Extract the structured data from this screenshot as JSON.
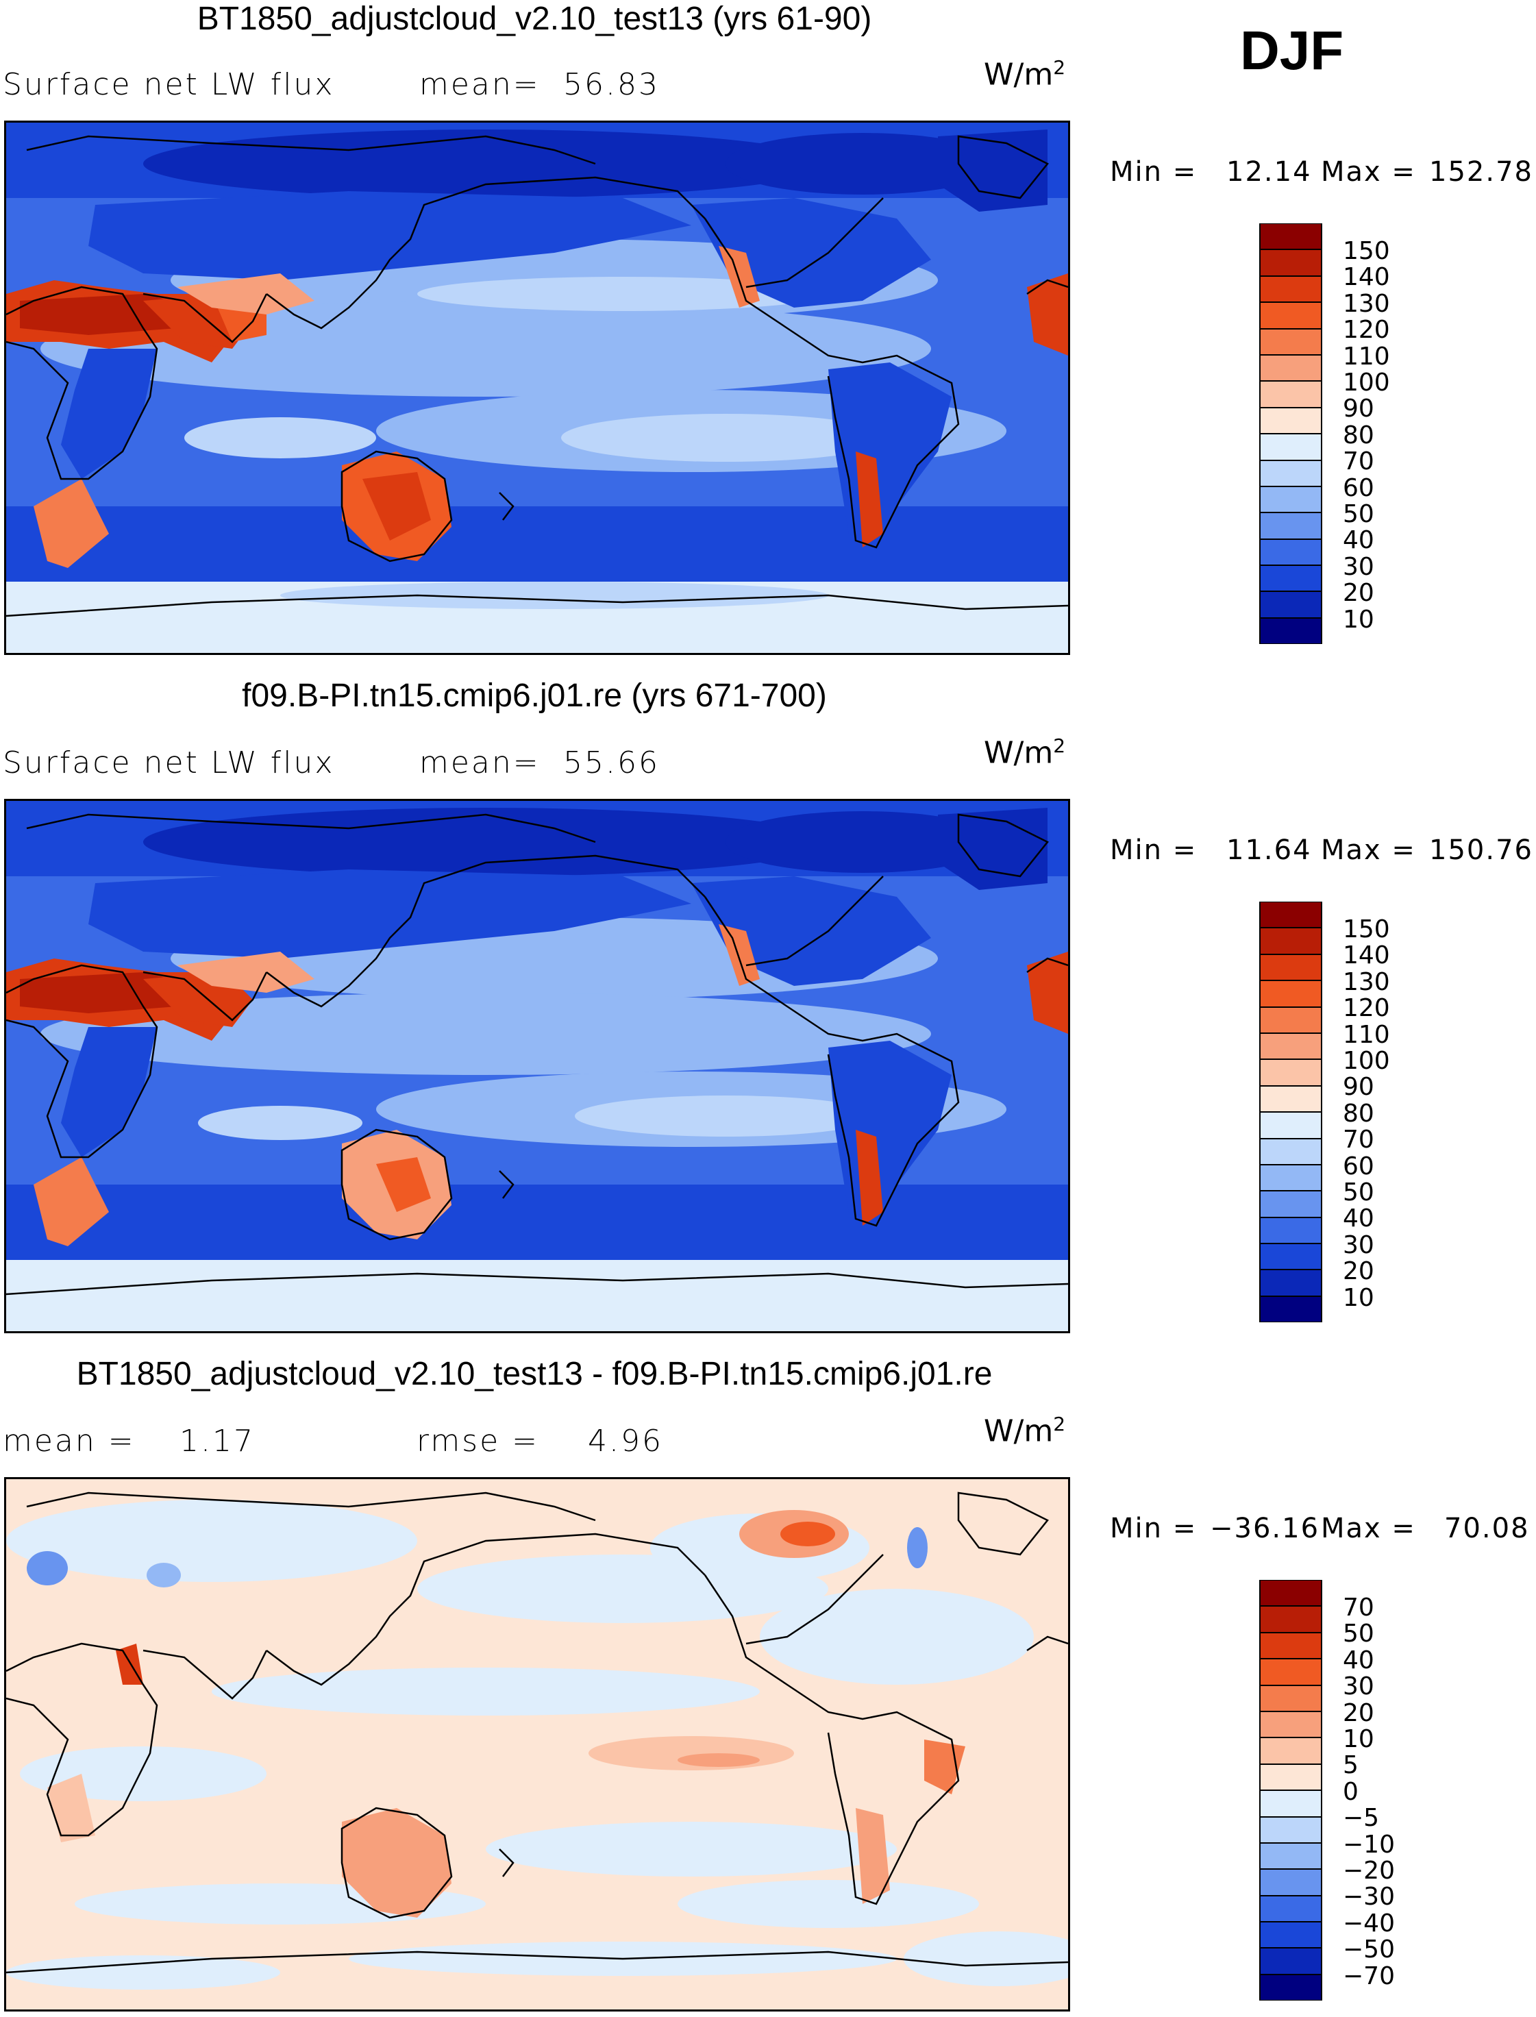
{
  "season": "DJF",
  "panels": [
    {
      "title": "BT1850_adjustcloud_v2.10_test13 (yrs 61-90)",
      "left_label": "Surface net LW flux",
      "mean_label": "mean=",
      "mean_value": "56.83",
      "units": "W/m",
      "units_exp": "2",
      "min_label": "Min =",
      "min_value": "12.14",
      "max_label": "Max =",
      "max_value": "152.78",
      "colorbar_labels": [
        "150",
        "140",
        "130",
        "120",
        "110",
        "100",
        "90",
        "80",
        "70",
        "60",
        "50",
        "40",
        "30",
        "20",
        "10"
      ],
      "colors": [
        "#8b0000",
        "#b81e06",
        "#dc3b10",
        "#f05a23",
        "#f47c4c",
        "#f7a07c",
        "#fbc4a8",
        "#fde6d6",
        "#dfeefc",
        "#bcd6fa",
        "#93b8f5",
        "#6894ef",
        "#3a6ae6",
        "#1a47d8",
        "#0b28b8",
        "#000080"
      ]
    },
    {
      "title": "f09.B-PI.tn15.cmip6.j01.re (yrs 671-700)",
      "left_label": "Surface net LW flux",
      "mean_label": "mean=",
      "mean_value": "55.66",
      "units": "W/m",
      "units_exp": "2",
      "min_label": "Min =",
      "min_value": "11.64",
      "max_label": "Max =",
      "max_value": "150.76",
      "colorbar_labels": [
        "150",
        "140",
        "130",
        "120",
        "110",
        "100",
        "90",
        "80",
        "70",
        "60",
        "50",
        "40",
        "30",
        "20",
        "10"
      ],
      "colors": [
        "#8b0000",
        "#b81e06",
        "#dc3b10",
        "#f05a23",
        "#f47c4c",
        "#f7a07c",
        "#fbc4a8",
        "#fde6d6",
        "#dfeefc",
        "#bcd6fa",
        "#93b8f5",
        "#6894ef",
        "#3a6ae6",
        "#1a47d8",
        "#0b28b8",
        "#000080"
      ]
    },
    {
      "title": "BT1850_adjustcloud_v2.10_test13 - f09.B-PI.tn15.cmip6.j01.re",
      "left_label": "mean =",
      "left_value": "1.17",
      "mean_label": "rmse =",
      "mean_value": "4.96",
      "units": "W/m",
      "units_exp": "2",
      "min_label": "Min =",
      "min_value": "−36.16",
      "max_label": "Max =",
      "max_value": "70.08",
      "colorbar_labels": [
        "70",
        "50",
        "40",
        "30",
        "20",
        "10",
        "5",
        "0",
        "−5",
        "−10",
        "−20",
        "−30",
        "−40",
        "−50",
        "−70"
      ],
      "colors": [
        "#8b0000",
        "#b81e06",
        "#dc3b10",
        "#f05a23",
        "#f47c4c",
        "#f7a07c",
        "#fbc4a8",
        "#fde6d6",
        "#dfeefc",
        "#bcd6fa",
        "#93b8f5",
        "#6894ef",
        "#3a6ae6",
        "#1a47d8",
        "#0b28b8",
        "#000080"
      ]
    }
  ]
}
